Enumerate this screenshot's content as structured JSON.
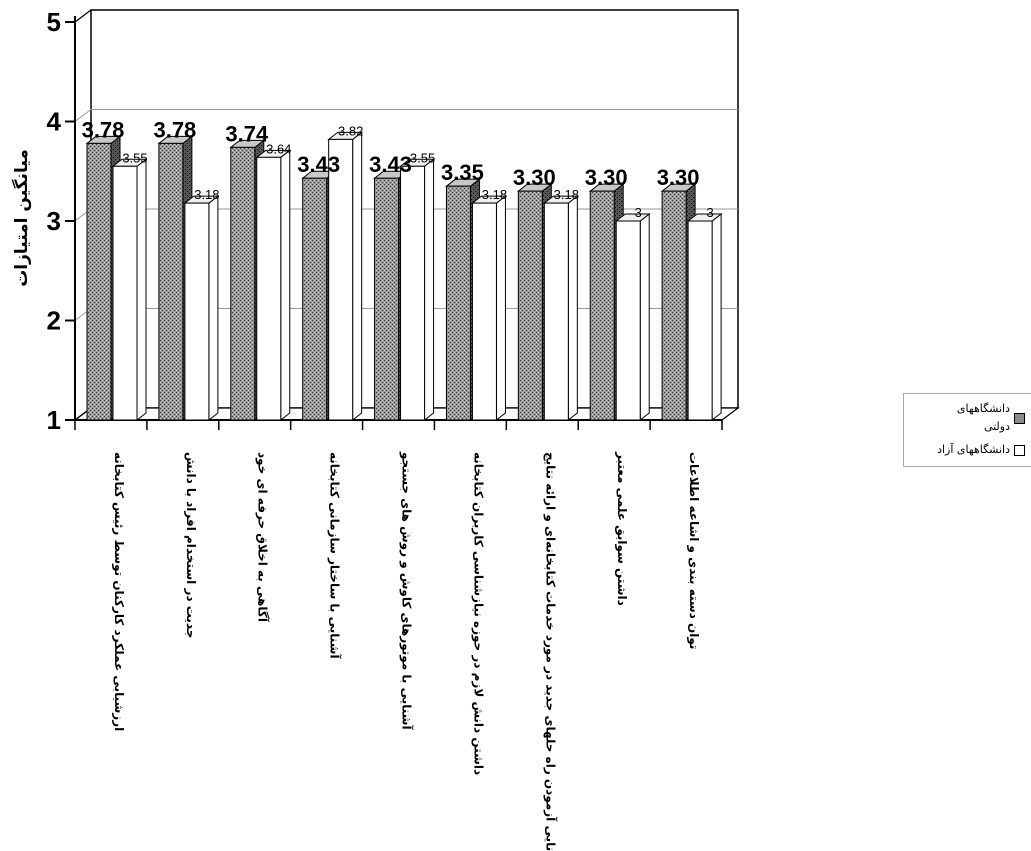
{
  "chart_data": {
    "type": "bar",
    "ylabel": "میانگین امتیازات",
    "ylim": [
      1,
      5
    ],
    "yticks": [
      "1",
      "2",
      "3",
      "4",
      "5"
    ],
    "grid": true,
    "three_d": true,
    "legend_position": "right",
    "categories": [
      "ارزشیابی عملکرد کارکنان توسط رئیس کتابخانه",
      "جدیت در استخدام افراد با دانش",
      "آگاهی به اخلاق حرفه ای خود",
      "آشنایی با ساختار سازمانی کتابخانه",
      "آشنایی با موتورهای کاوش و روش های جستجو",
      "داشتن دانش لازم در حوزه نیازشناسی کاربران کتابخانه",
      "توانایی آزمودن راه حلهای جدید در مورد خدمات کتابخانه‌ای و ارائه نتایج",
      "داشتن سوابق علمی معتبر",
      "توان دسته بندی و اشاعه اطلاعات"
    ],
    "series": [
      {
        "name": "دانشگاههای دولتی",
        "color": "#8c8c8c",
        "pattern": "stipple",
        "values": [
          3.78,
          3.78,
          3.74,
          3.43,
          3.43,
          3.35,
          3.3,
          3.3,
          3.3
        ],
        "labels": [
          "3.78",
          "3.78",
          "3.74",
          "3.43",
          "3.43",
          "3.35",
          "3.30",
          "3.30",
          "3.30"
        ]
      },
      {
        "name": "دانشگاههای آزاد",
        "color": "#ffffff",
        "values": [
          3.55,
          3.18,
          3.64,
          3.82,
          3.55,
          3.18,
          3.18,
          3.0,
          3.0
        ],
        "labels": [
          "3.55",
          "3.18",
          "3.64",
          "3.82",
          "3.55",
          "3.18",
          "3.18",
          "3",
          "3"
        ]
      }
    ]
  },
  "legend": {
    "item1": "دانشگاههای دولتی",
    "item2": "دانشگاههای آزاد"
  }
}
